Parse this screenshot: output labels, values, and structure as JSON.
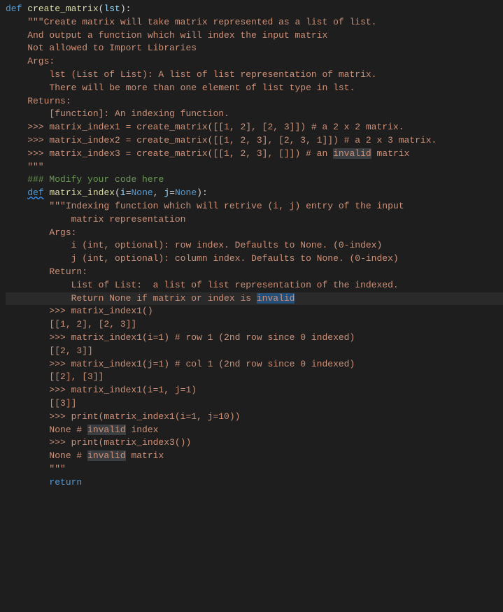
{
  "colors": {
    "kw": "#569cd6",
    "fn": "#dcdcaa",
    "param": "#9cdcfe",
    "str": "#ce9178",
    "num": "#b5cea8",
    "const": "#569cd6",
    "comment": "#6a9955",
    "default": "#d4d4d4",
    "bg": "#1e1e1e"
  },
  "lines": [
    [
      [
        "kw",
        "def "
      ],
      [
        "fn",
        "create_matrix"
      ],
      [
        "default",
        "("
      ],
      [
        "param",
        "lst"
      ],
      [
        "default",
        "):"
      ]
    ],
    [
      [
        "str",
        "    \"\"\"Create matrix will take matrix represented as a list of list."
      ]
    ],
    [
      [
        "str",
        "    And output a function which will index the input matrix"
      ]
    ],
    [
      [
        "str",
        "    Not allowed to Import Libraries"
      ]
    ],
    [
      [
        "str",
        "    Args:"
      ]
    ],
    [
      [
        "str",
        "        lst (List of List): A list of list representation of matrix."
      ]
    ],
    [
      [
        "str",
        "        There will be more than one element of list type in lst."
      ]
    ],
    [
      [
        "str",
        ""
      ]
    ],
    [
      [
        "str",
        "    Returns:"
      ]
    ],
    [
      [
        "str",
        "        [function]: An indexing function."
      ]
    ],
    [
      [
        "str",
        ""
      ]
    ],
    [
      [
        "str",
        "    >>> matrix_index1 = create_matrix([[1, 2], [2, 3]]) # a 2 x 2 matrix."
      ]
    ],
    [
      [
        "str",
        "    >>> matrix_index2 = create_matrix([[1, 2, 3], [2, 3, 1]]) # a 2 x 3 matrix."
      ]
    ],
    [
      [
        "str",
        "    >>> matrix_index3 = create_matrix([[1, 2, 3], []]) # an "
      ],
      [
        "str-hl",
        "invalid"
      ],
      [
        "str",
        " matrix"
      ]
    ],
    [
      [
        "str",
        ""
      ]
    ],
    [
      [
        "str",
        "    \"\"\""
      ]
    ],
    [
      [
        "default",
        "    "
      ],
      [
        "comment",
        "### Modify your code here"
      ]
    ],
    [
      [
        "default",
        "    "
      ],
      [
        "kw-squig",
        "def"
      ],
      [
        "default",
        " "
      ],
      [
        "fn",
        "matrix_index"
      ],
      [
        "default",
        "("
      ],
      [
        "param",
        "i"
      ],
      [
        "default",
        "="
      ],
      [
        "const",
        "None"
      ],
      [
        "default",
        ", "
      ],
      [
        "param",
        "j"
      ],
      [
        "default",
        "="
      ],
      [
        "const",
        "None"
      ],
      [
        "default",
        "):"
      ]
    ],
    [
      [
        "str",
        "        \"\"\"Indexing function which will retrive (i, j) entry of the input"
      ]
    ],
    [
      [
        "str",
        "            matrix representation"
      ]
    ],
    [
      [
        "str",
        ""
      ]
    ],
    [
      [
        "str",
        "        Args:"
      ]
    ],
    [
      [
        "str",
        "            i (int, optional): row index. Defaults to None. (0-index)"
      ]
    ],
    [
      [
        "str",
        "            j (int, optional): column index. Defaults to None. (0-index)"
      ]
    ],
    [
      [
        "str",
        ""
      ]
    ],
    [
      [
        "str",
        "        Return:"
      ]
    ],
    [
      [
        "str",
        "            List of List:  a list of list representation of the indexed."
      ]
    ],
    [
      [
        "str-cursor",
        "            Return None if matrix or index is "
      ],
      [
        "str-sel",
        "invalid"
      ]
    ],
    [
      [
        "str",
        ""
      ]
    ],
    [
      [
        "str",
        "        >>> matrix_index1()"
      ]
    ],
    [
      [
        "str",
        "        [[1, 2], [2, 3]]"
      ]
    ],
    [
      [
        "str",
        "        >>> matrix_index1(i=1) # row 1 (2nd row since 0 indexed)"
      ]
    ],
    [
      [
        "str",
        "        [[2, 3]]"
      ]
    ],
    [
      [
        "str",
        "        >>> matrix_index1(j=1) # col 1 (2nd row since 0 indexed)"
      ]
    ],
    [
      [
        "str",
        "        [[2], [3]]"
      ]
    ],
    [
      [
        "str",
        "        >>> matrix_index1(i=1, j=1)"
      ]
    ],
    [
      [
        "str",
        "        [[3]]"
      ]
    ],
    [
      [
        "str",
        "        >>> print(matrix_index1(i=1, j=10))"
      ]
    ],
    [
      [
        "str",
        "        None # "
      ],
      [
        "str-hl",
        "invalid"
      ],
      [
        "str",
        " index"
      ]
    ],
    [
      [
        "str",
        "        >>> print(matrix_index3())"
      ]
    ],
    [
      [
        "str",
        "        None # "
      ],
      [
        "str-hl",
        "invalid"
      ],
      [
        "str",
        " matrix"
      ]
    ],
    [
      [
        "str",
        "        \"\"\""
      ]
    ],
    [
      [
        "default",
        "        "
      ],
      [
        "kw",
        "return"
      ]
    ]
  ]
}
